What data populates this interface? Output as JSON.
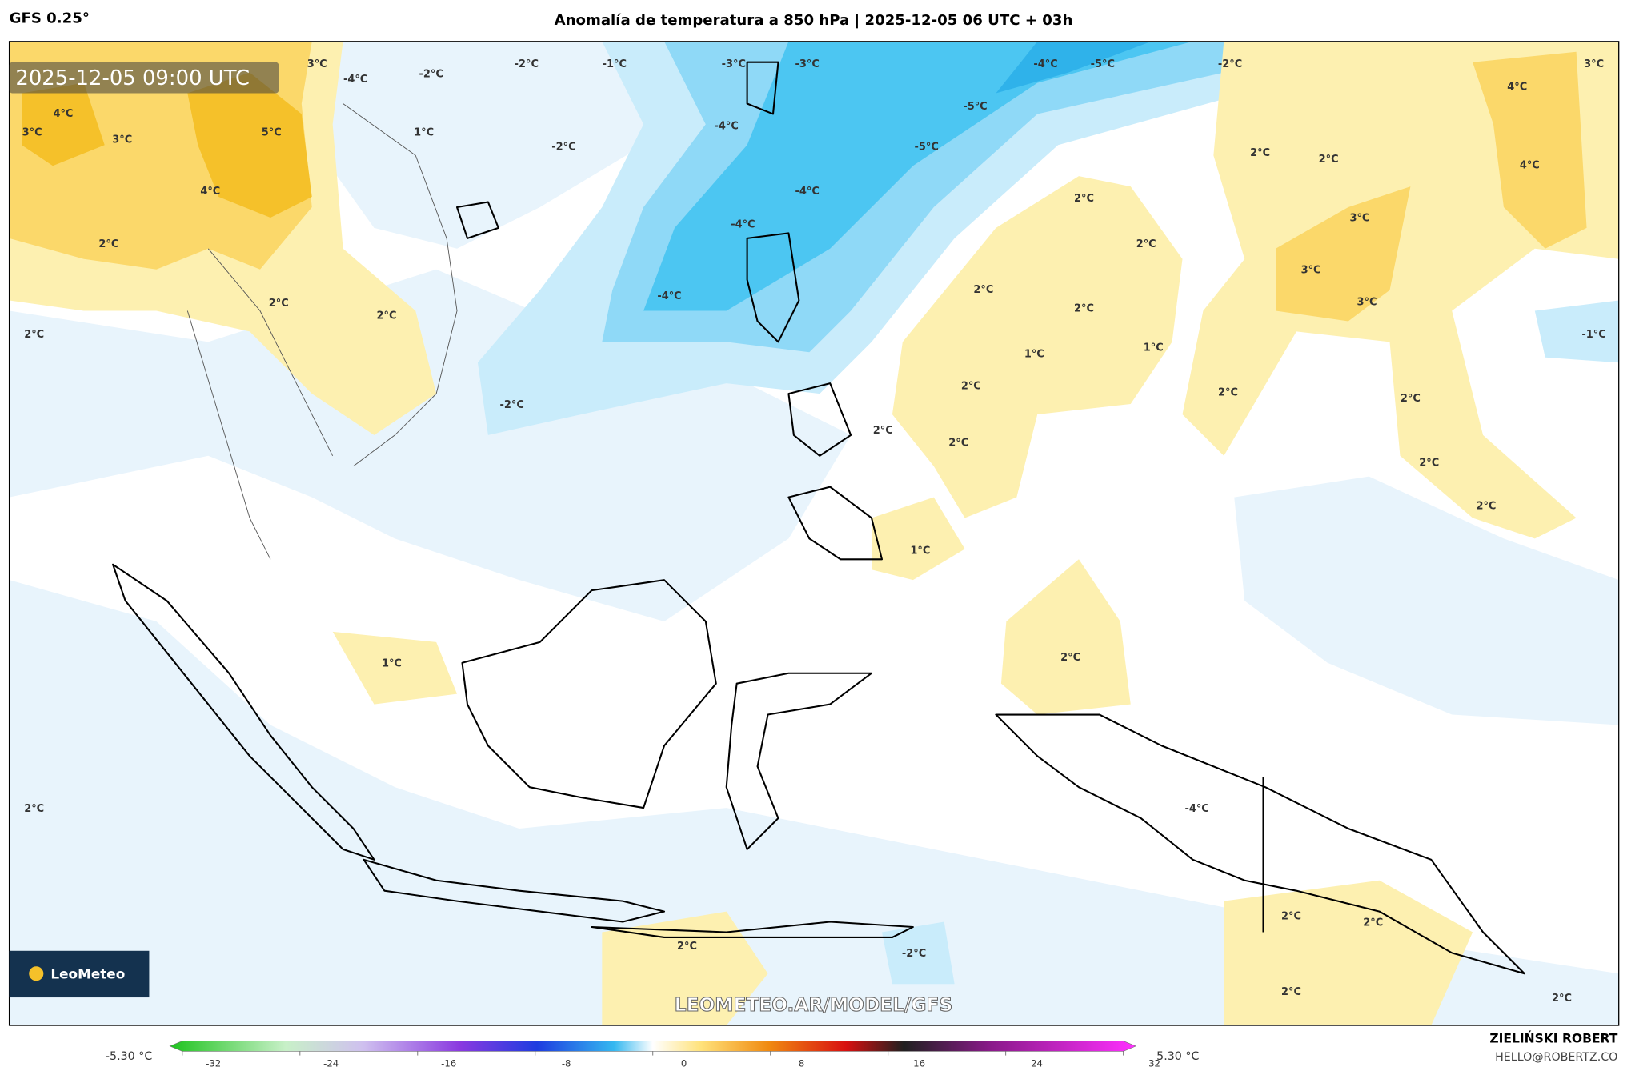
{
  "header": {
    "model": "GFS 0.25°",
    "title": "Anomalía de temperatura a 850 hPa | 2025-12-05 06 UTC + 03h"
  },
  "map": {
    "timestamp": "2025-12-05 09:00 UTC",
    "watermark": "LEOMETEO.AR/MODEL/GFS",
    "logo": "LeoMeteo",
    "contour_labels": [
      "3°C",
      "-4°C",
      "-2°C",
      "-2°C",
      "-1°C",
      "-3°C",
      "-3°C",
      "-4°C",
      "-5°C",
      "-2°C",
      "3°C",
      "4°C",
      "3°C",
      "3°C",
      "5°C",
      "1°C",
      "-2°C",
      "-4°C",
      "-5°C",
      "-5°C",
      "4°C",
      "4°C",
      "2°C",
      "2°C",
      "4°C",
      "-4°C",
      "2°C",
      "3°C",
      "-4°C",
      "2°C",
      "2°C",
      "3°C",
      "2°C",
      "-4°C",
      "2°C",
      "2°C",
      "2°C",
      "3°C",
      "2°C",
      "-1°C",
      "1°C",
      "1°C",
      "2°C",
      "2°C",
      "2°C",
      "-2°C",
      "2°C",
      "2°C",
      "2°C",
      "2°C",
      "1°C",
      "1°C",
      "2°C",
      "2°C",
      "-4°C",
      "2°C",
      "2°C",
      "2°C",
      "-2°C",
      "2°C",
      "2°C"
    ]
  },
  "colorbar": {
    "min_label": "-5.30 °C",
    "max_label": "5.30 °C",
    "lim": [
      -32,
      32
    ],
    "ticks": [
      -32,
      -24,
      -16,
      -8,
      0,
      8,
      16,
      24,
      32
    ]
  },
  "footer": {
    "author": "ZIELIŃSKI ROBERT",
    "email": "HELLO@ROBERTZ.CO"
  }
}
